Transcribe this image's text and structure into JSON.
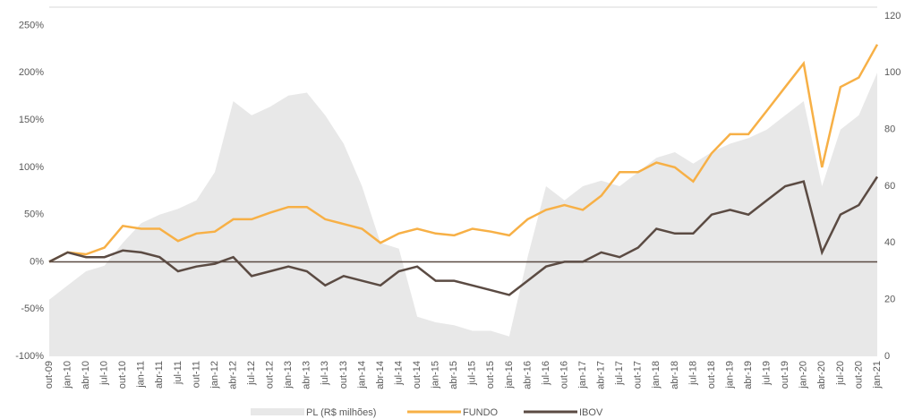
{
  "chart_data": {
    "type": "line",
    "categories": [
      "out-09",
      "jan-10",
      "abr-10",
      "jul-10",
      "out-10",
      "jan-11",
      "abr-11",
      "jul-11",
      "out-11",
      "jan-12",
      "abr-12",
      "jul-12",
      "out-12",
      "jan-13",
      "abr-13",
      "jul-13",
      "out-13",
      "jan-14",
      "abr-14",
      "jul-14",
      "out-14",
      "jan-15",
      "abr-15",
      "jul-15",
      "out-15",
      "jan-16",
      "abr-16",
      "jul-16",
      "out-16",
      "jan-17",
      "abr-17",
      "jul-17",
      "out-17",
      "jan-18",
      "abr-18",
      "jul-18",
      "out-18",
      "jan-19",
      "abr-19",
      "jul-19",
      "out-19",
      "jan-20",
      "abr-20",
      "jul-20",
      "out-20",
      "jan-21"
    ],
    "series": [
      {
        "name": "PL (R$ milhões)",
        "color": "#e8e8e8",
        "kind": "area",
        "axis": "y2",
        "values": [
          20,
          25,
          30,
          32,
          40,
          47,
          50,
          52,
          55,
          65,
          90,
          85,
          88,
          92,
          93,
          85,
          75,
          60,
          40,
          38,
          14,
          12,
          11,
          9,
          9,
          7,
          35,
          60,
          55,
          60,
          62,
          60,
          65,
          70,
          72,
          68,
          72,
          75,
          77,
          80,
          85,
          90,
          60,
          80,
          85,
          100
        ]
      },
      {
        "name": "FUNDO",
        "color": "#f7b046",
        "kind": "line",
        "values": [
          0,
          10,
          8,
          15,
          38,
          35,
          35,
          22,
          30,
          32,
          45,
          45,
          52,
          58,
          58,
          45,
          40,
          35,
          20,
          30,
          35,
          30,
          28,
          35,
          32,
          28,
          45,
          55,
          60,
          55,
          70,
          95,
          95,
          105,
          100,
          85,
          115,
          135,
          135,
          160,
          185,
          210,
          100,
          185,
          195,
          230
        ]
      },
      {
        "name": "IBOV",
        "color": "#5b4b43",
        "kind": "line",
        "values": [
          0,
          10,
          5,
          5,
          12,
          10,
          5,
          -10,
          -5,
          -2,
          5,
          -15,
          -10,
          -5,
          -10,
          -25,
          -15,
          -20,
          -25,
          -10,
          -5,
          -20,
          -20,
          -25,
          -30,
          -35,
          -20,
          -5,
          0,
          0,
          10,
          5,
          15,
          35,
          30,
          30,
          50,
          55,
          50,
          65,
          80,
          85,
          10,
          50,
          60,
          90
        ]
      }
    ],
    "ylim": [
      -100,
      260
    ],
    "yticks": [
      {
        "value": -100,
        "label": "-100%"
      },
      {
        "value": -50,
        "label": "-50%"
      },
      {
        "value": 0,
        "label": "0%"
      },
      {
        "value": 50,
        "label": "50%"
      },
      {
        "value": 100,
        "label": "100%"
      },
      {
        "value": 150,
        "label": "150%"
      },
      {
        "value": 200,
        "label": "200%"
      },
      {
        "value": 250,
        "label": "250%"
      }
    ],
    "y2lim": [
      0,
      120
    ],
    "y2ticks": [
      0,
      20,
      40,
      60,
      80,
      100,
      120
    ],
    "zero_line": true
  }
}
